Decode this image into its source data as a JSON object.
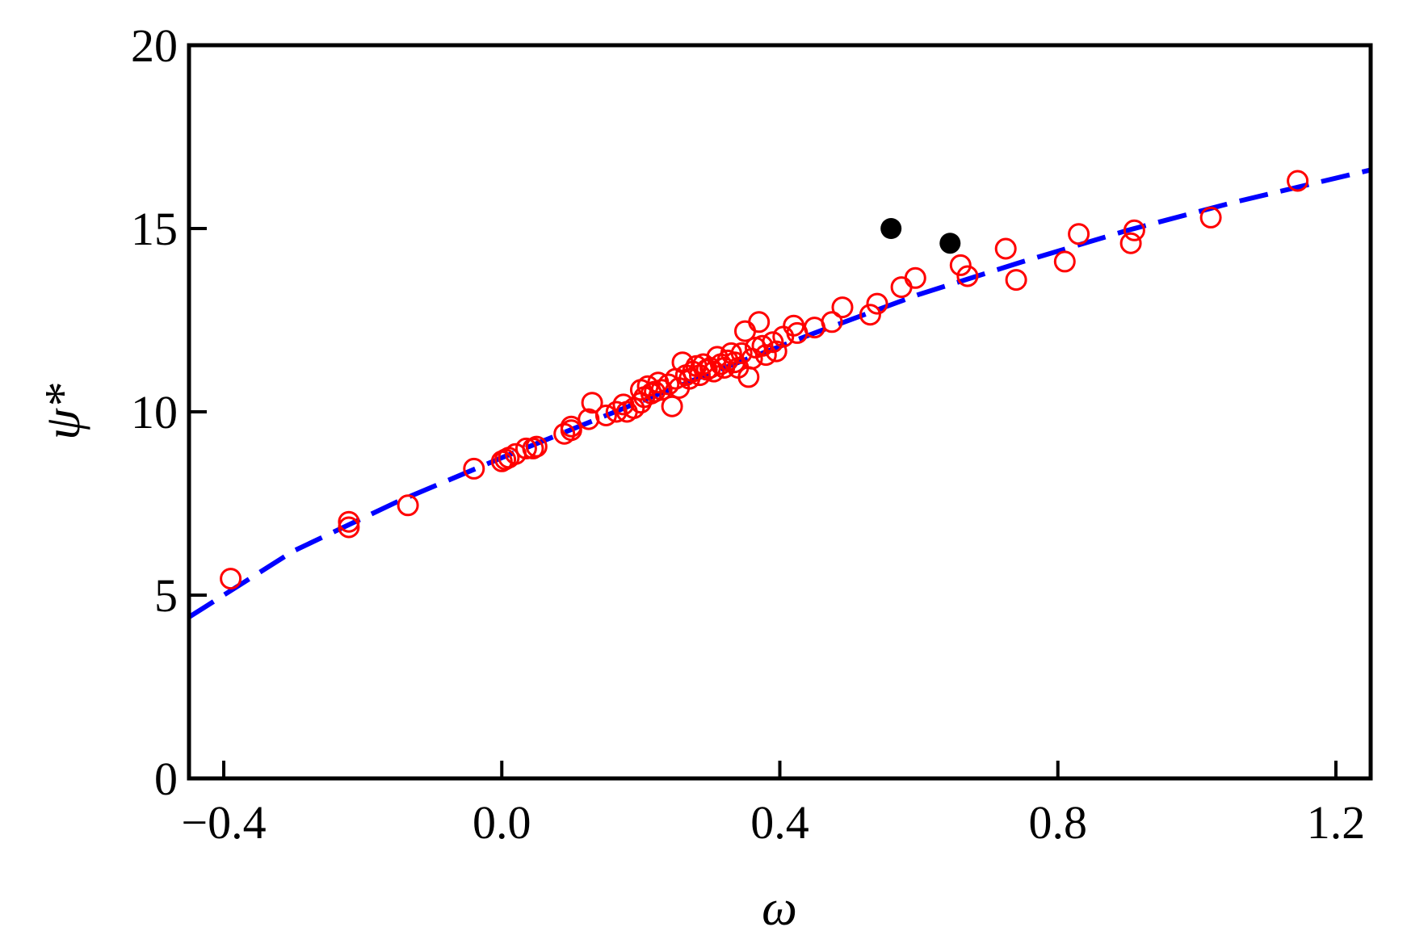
{
  "chart_data": {
    "type": "scatter",
    "title": "",
    "xlabel": "ω",
    "ylabel": "ψ*",
    "xlim": [
      -0.45,
      1.25
    ],
    "ylim": [
      0,
      20
    ],
    "xticks": [
      -0.4,
      0.0,
      0.4,
      0.8,
      1.2
    ],
    "xtick_labels": [
      "−0.4",
      "0.0",
      "0.4",
      "0.8",
      "1.2"
    ],
    "yticks": [
      0,
      5,
      10,
      15,
      20
    ],
    "ytick_labels": [
      "0",
      "5",
      "10",
      "15",
      "20"
    ],
    "grid": false,
    "colors": {
      "open": "#ff0000",
      "filled": "#000000",
      "fit": "#0000ff",
      "axes": "#000000"
    },
    "series": [
      {
        "marker": "open-circle",
        "points": [
          [
            -0.39,
            5.45
          ],
          [
            -0.22,
            7.0
          ],
          [
            -0.22,
            6.85
          ],
          [
            -0.135,
            7.45
          ],
          [
            -0.04,
            8.45
          ],
          [
            0.0,
            8.65
          ],
          [
            0.005,
            8.7
          ],
          [
            0.01,
            8.75
          ],
          [
            0.02,
            8.85
          ],
          [
            0.035,
            9.0
          ],
          [
            0.045,
            9.0
          ],
          [
            0.05,
            9.05
          ],
          [
            0.09,
            9.4
          ],
          [
            0.1,
            9.5
          ],
          [
            0.1,
            9.6
          ],
          [
            0.125,
            9.8
          ],
          [
            0.13,
            10.25
          ],
          [
            0.15,
            9.9
          ],
          [
            0.165,
            10.0
          ],
          [
            0.175,
            10.2
          ],
          [
            0.18,
            10.0
          ],
          [
            0.19,
            10.1
          ],
          [
            0.2,
            10.25
          ],
          [
            0.2,
            10.6
          ],
          [
            0.205,
            10.4
          ],
          [
            0.21,
            10.7
          ],
          [
            0.215,
            10.5
          ],
          [
            0.22,
            10.55
          ],
          [
            0.225,
            10.8
          ],
          [
            0.23,
            10.6
          ],
          [
            0.24,
            10.75
          ],
          [
            0.245,
            10.15
          ],
          [
            0.25,
            10.9
          ],
          [
            0.255,
            10.65
          ],
          [
            0.26,
            11.35
          ],
          [
            0.265,
            11.0
          ],
          [
            0.27,
            10.9
          ],
          [
            0.275,
            11.1
          ],
          [
            0.28,
            11.25
          ],
          [
            0.285,
            11.0
          ],
          [
            0.29,
            11.3
          ],
          [
            0.295,
            11.15
          ],
          [
            0.3,
            11.2
          ],
          [
            0.305,
            11.1
          ],
          [
            0.31,
            11.5
          ],
          [
            0.315,
            11.3
          ],
          [
            0.32,
            11.2
          ],
          [
            0.325,
            11.4
          ],
          [
            0.33,
            11.6
          ],
          [
            0.335,
            11.35
          ],
          [
            0.34,
            11.2
          ],
          [
            0.345,
            11.6
          ],
          [
            0.35,
            12.2
          ],
          [
            0.355,
            10.95
          ],
          [
            0.36,
            11.45
          ],
          [
            0.365,
            11.75
          ],
          [
            0.37,
            12.45
          ],
          [
            0.375,
            11.8
          ],
          [
            0.38,
            11.55
          ],
          [
            0.39,
            11.9
          ],
          [
            0.395,
            11.65
          ],
          [
            0.405,
            12.05
          ],
          [
            0.42,
            12.35
          ],
          [
            0.425,
            12.15
          ],
          [
            0.45,
            12.3
          ],
          [
            0.475,
            12.45
          ],
          [
            0.49,
            12.85
          ],
          [
            0.53,
            12.65
          ],
          [
            0.54,
            12.95
          ],
          [
            0.575,
            13.4
          ],
          [
            0.595,
            13.65
          ],
          [
            0.66,
            14.0
          ],
          [
            0.67,
            13.7
          ],
          [
            0.725,
            14.45
          ],
          [
            0.74,
            13.6
          ],
          [
            0.81,
            14.1
          ],
          [
            0.83,
            14.85
          ],
          [
            0.905,
            14.6
          ],
          [
            0.91,
            14.95
          ],
          [
            1.02,
            15.3
          ],
          [
            1.145,
            16.3
          ]
        ]
      },
      {
        "marker": "filled-circle",
        "points": [
          [
            0.56,
            15.0
          ],
          [
            0.645,
            14.6
          ]
        ]
      },
      {
        "marker": "dashed-line",
        "points": [
          [
            -0.45,
            4.4
          ],
          [
            -0.3,
            6.2
          ],
          [
            -0.15,
            7.55
          ],
          [
            0.0,
            8.75
          ],
          [
            0.15,
            9.9
          ],
          [
            0.3,
            11.05
          ],
          [
            0.45,
            12.15
          ],
          [
            0.6,
            13.2
          ],
          [
            0.75,
            14.1
          ],
          [
            0.9,
            14.95
          ],
          [
            1.05,
            15.7
          ],
          [
            1.25,
            16.6
          ]
        ]
      }
    ]
  }
}
